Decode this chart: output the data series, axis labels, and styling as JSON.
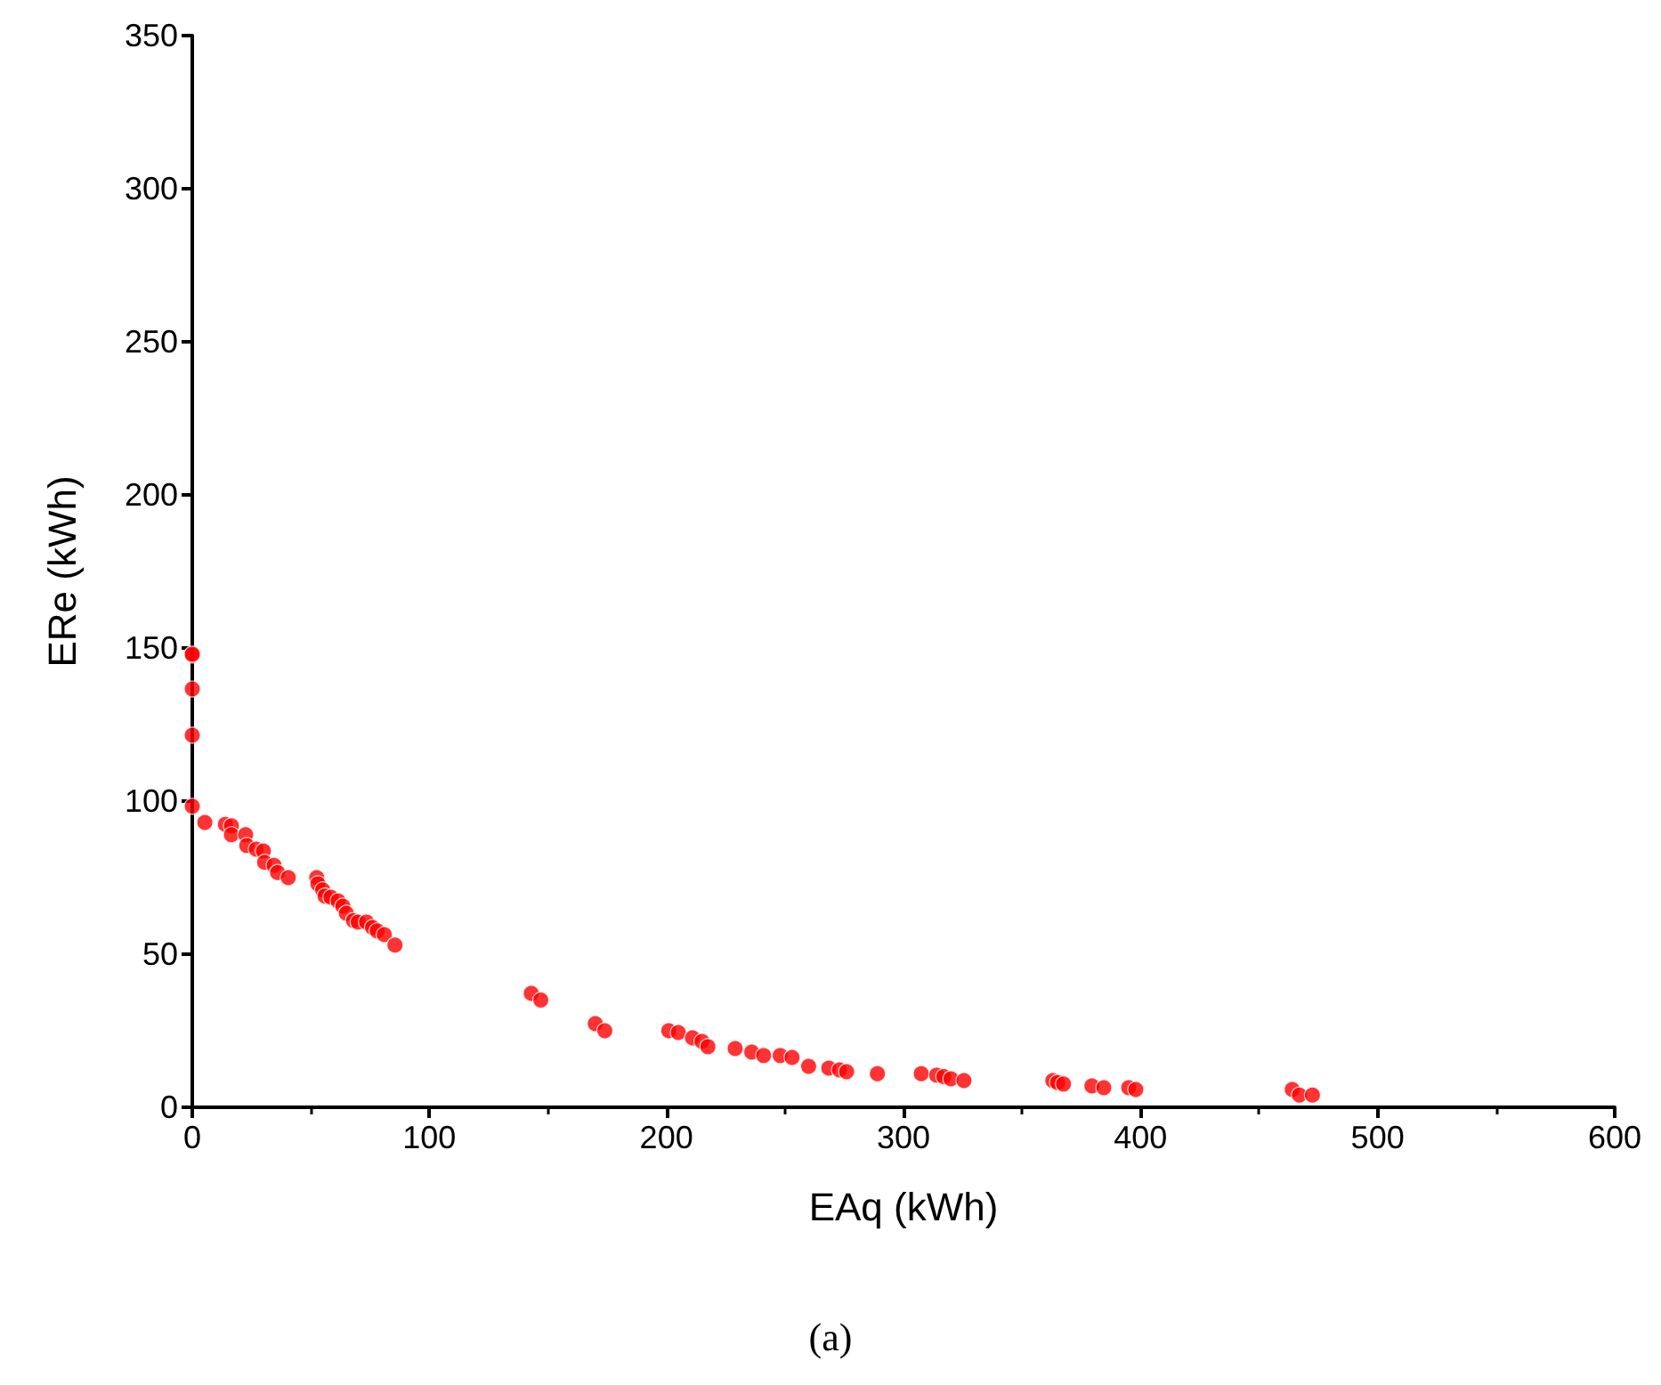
{
  "chart_data": {
    "type": "scatter",
    "xlabel": "EAq (kWh)",
    "ylabel": "ERe (kWh)",
    "annotations": [
      "(a)"
    ],
    "x": [
      0,
      0,
      0,
      0,
      0,
      5.3,
      14,
      16.5,
      16.5,
      22.5,
      23,
      27,
      30,
      30.5,
      34.5,
      36,
      40.5,
      52.5,
      53,
      55,
      56,
      58.5,
      61.5,
      63.5,
      65,
      68,
      70,
      73.5,
      76,
      78,
      81,
      85.5,
      143,
      147,
      170,
      174,
      201,
      205,
      211,
      215,
      217.5,
      229,
      236,
      241,
      248,
      253,
      260,
      268.5,
      273,
      276,
      289,
      307.5,
      314,
      317,
      320,
      325.5,
      363,
      365,
      367.5,
      379.5,
      384.5,
      395,
      398,
      464,
      467,
      472.5
    ],
    "series": [
      {
        "color": "#ff0000",
        "values": [
          147.7,
          148,
          136.6,
          121.5,
          98.3,
          93,
          92.4,
          91.9,
          89,
          89,
          85.5,
          84.3,
          83.7,
          80,
          79,
          76.7,
          75,
          75,
          73,
          71,
          69,
          68.6,
          67.4,
          65.7,
          63.4,
          61,
          60.5,
          60.5,
          58.7,
          57.6,
          56.4,
          53,
          37.2,
          35,
          27.3,
          25,
          25,
          24.4,
          22.7,
          21.5,
          19.8,
          19.2,
          18,
          16.9,
          16.9,
          16.3,
          13.4,
          12.8,
          12.2,
          11.6,
          11,
          11,
          10.5,
          10,
          9.3,
          8.7,
          8.7,
          8.1,
          7.6,
          7,
          6.4,
          6.4,
          5.8,
          5.8,
          4,
          4
        ]
      }
    ],
    "xlim": [
      0,
      600
    ],
    "xticks": [
      0,
      100,
      200,
      300,
      400,
      500,
      600
    ],
    "ylim": [
      0,
      350
    ],
    "yticks": [
      0,
      50,
      100,
      150,
      200,
      250,
      300,
      350
    ],
    "marker": "circle"
  }
}
